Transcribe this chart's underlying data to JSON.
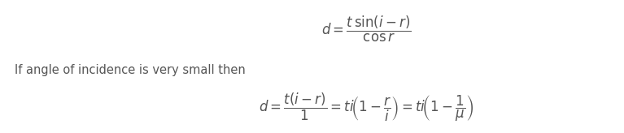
{
  "background_color": "#ffffff",
  "text_color": "#555555",
  "eq2_label": "If angle of incidence is very small then",
  "fig_width": 7.67,
  "fig_height": 1.64,
  "dpi": 100
}
